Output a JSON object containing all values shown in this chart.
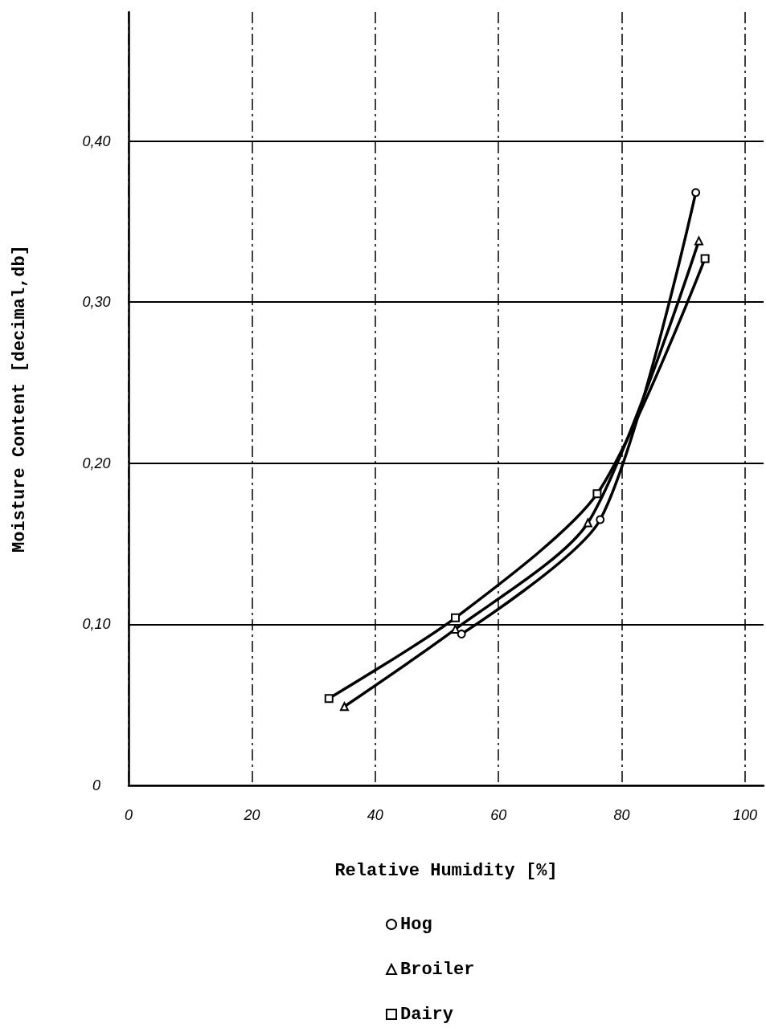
{
  "chart_data": {
    "type": "line",
    "xlabel": "Relative Humidity [%]",
    "ylabel": "Moisture Content [decimal,db]",
    "series": [
      {
        "name": "Hog",
        "color": "#000000",
        "marker": "circle",
        "x": [
          54,
          76.5,
          92
        ],
        "values": [
          0.094,
          0.165,
          0.368
        ]
      },
      {
        "name": "Broiler",
        "color": "#000000",
        "marker": "triangle",
        "x": [
          35,
          53,
          74.5,
          92.5
        ],
        "values": [
          0.049,
          0.097,
          0.163,
          0.338
        ]
      },
      {
        "name": "Dairy",
        "color": "#000000",
        "marker": "square",
        "x": [
          32.5,
          53,
          76,
          93.5
        ],
        "values": [
          0.054,
          0.104,
          0.181,
          0.327
        ]
      }
    ],
    "xlim": [
      0,
      103
    ],
    "xticks": [
      0,
      20,
      40,
      60,
      80,
      100
    ],
    "ylim": [
      0,
      0.48
    ],
    "yticks": [
      {
        "value": 0,
        "label": "0"
      },
      {
        "value": 0.1,
        "label": "0,10"
      },
      {
        "value": 0.2,
        "label": "0,20"
      },
      {
        "value": 0.3,
        "label": "0,30"
      },
      {
        "value": 0.4,
        "label": "0,40"
      }
    ],
    "grid": true,
    "legend": "bottom",
    "line_style": "solid"
  }
}
